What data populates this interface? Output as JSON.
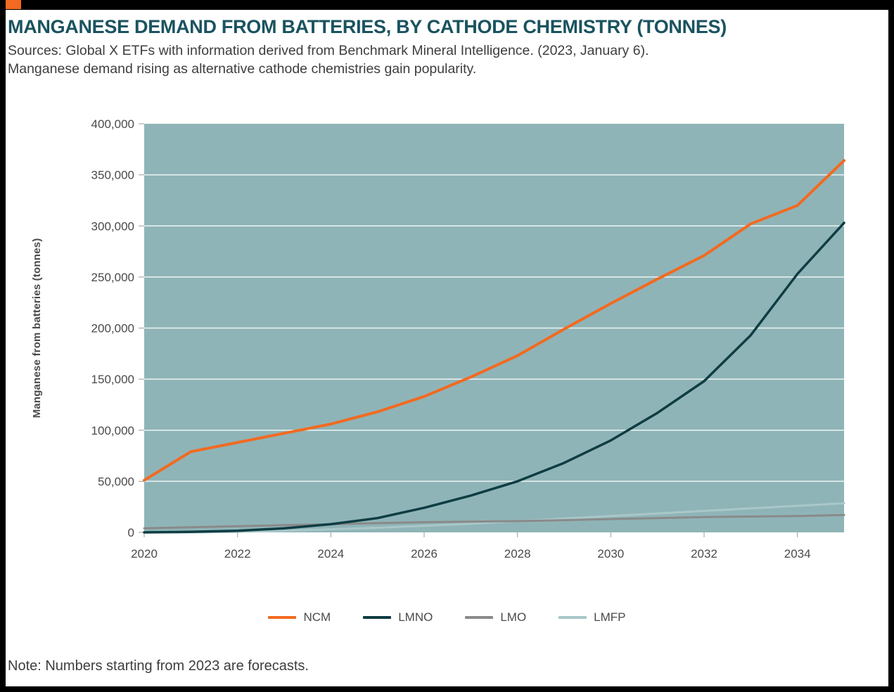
{
  "accent_color": "#f26a21",
  "header": {
    "title": "MANGANESE DEMAND FROM BATTERIES, BY CATHODE CHEMISTRY (TONNES)",
    "source_line1": "Sources: Global X ETFs with information derived from Benchmark Mineral Intelligence. (2023, January 6).",
    "source_line2": "Manganese demand rising as alternative cathode chemistries gain popularity."
  },
  "note": "Note: Numbers starting from 2023 are forecasts.",
  "chart_data": {
    "type": "line",
    "title": "Manganese demand from batteries, by cathode chemistry (tonnes)",
    "xlabel": "",
    "ylabel": "Manganese from batteries (tonnes)",
    "plot_bg": "#8fb4b7",
    "grid": "horizontal",
    "gridline_color": "rgba(255,255,255,0.85)",
    "legend_position": "bottom",
    "x": [
      2020,
      2021,
      2022,
      2023,
      2024,
      2025,
      2026,
      2027,
      2028,
      2029,
      2030,
      2031,
      2032,
      2033,
      2034,
      2035
    ],
    "x_ticks": [
      2020,
      2022,
      2024,
      2026,
      2028,
      2030,
      2032,
      2034
    ],
    "x_tick_labels": [
      "2020",
      "2022",
      "2024",
      "2026",
      "2028",
      "2030",
      "2032",
      "2034"
    ],
    "ylim": [
      0,
      400000
    ],
    "y_ticks": [
      0,
      50000,
      100000,
      150000,
      200000,
      250000,
      300000,
      350000,
      400000
    ],
    "y_tick_labels": [
      "0",
      "50,000",
      "100,000",
      "150,000",
      "200,000",
      "250,000",
      "300,000",
      "350,000",
      "400,000"
    ],
    "series": [
      {
        "name": "NCM",
        "color": "#f26a21",
        "line_width": 4,
        "values": [
          51000,
          79000,
          88000,
          97000,
          106000,
          118000,
          133000,
          152000,
          173000,
          199000,
          224000,
          248000,
          271000,
          302000,
          320000,
          364000
        ]
      },
      {
        "name": "LMNO",
        "color": "#0e3d43",
        "line_width": 3.5,
        "values": [
          0,
          500,
          1500,
          4000,
          8000,
          14000,
          24000,
          36000,
          50000,
          68000,
          90000,
          117000,
          148000,
          193000,
          253000,
          303000
        ]
      },
      {
        "name": "LMO",
        "color": "#8a8a8a",
        "line_width": 3,
        "values": [
          4000,
          5000,
          6000,
          7000,
          8000,
          9000,
          10000,
          10500,
          11000,
          12000,
          13000,
          14000,
          15000,
          15500,
          16000,
          17000
        ]
      },
      {
        "name": "LMFP",
        "color": "#a9c7c9",
        "line_width": 3,
        "values": [
          0,
          0,
          500,
          1500,
          3000,
          4500,
          6500,
          8500,
          11000,
          13500,
          16000,
          18500,
          21000,
          23500,
          26000,
          28500
        ]
      }
    ]
  }
}
